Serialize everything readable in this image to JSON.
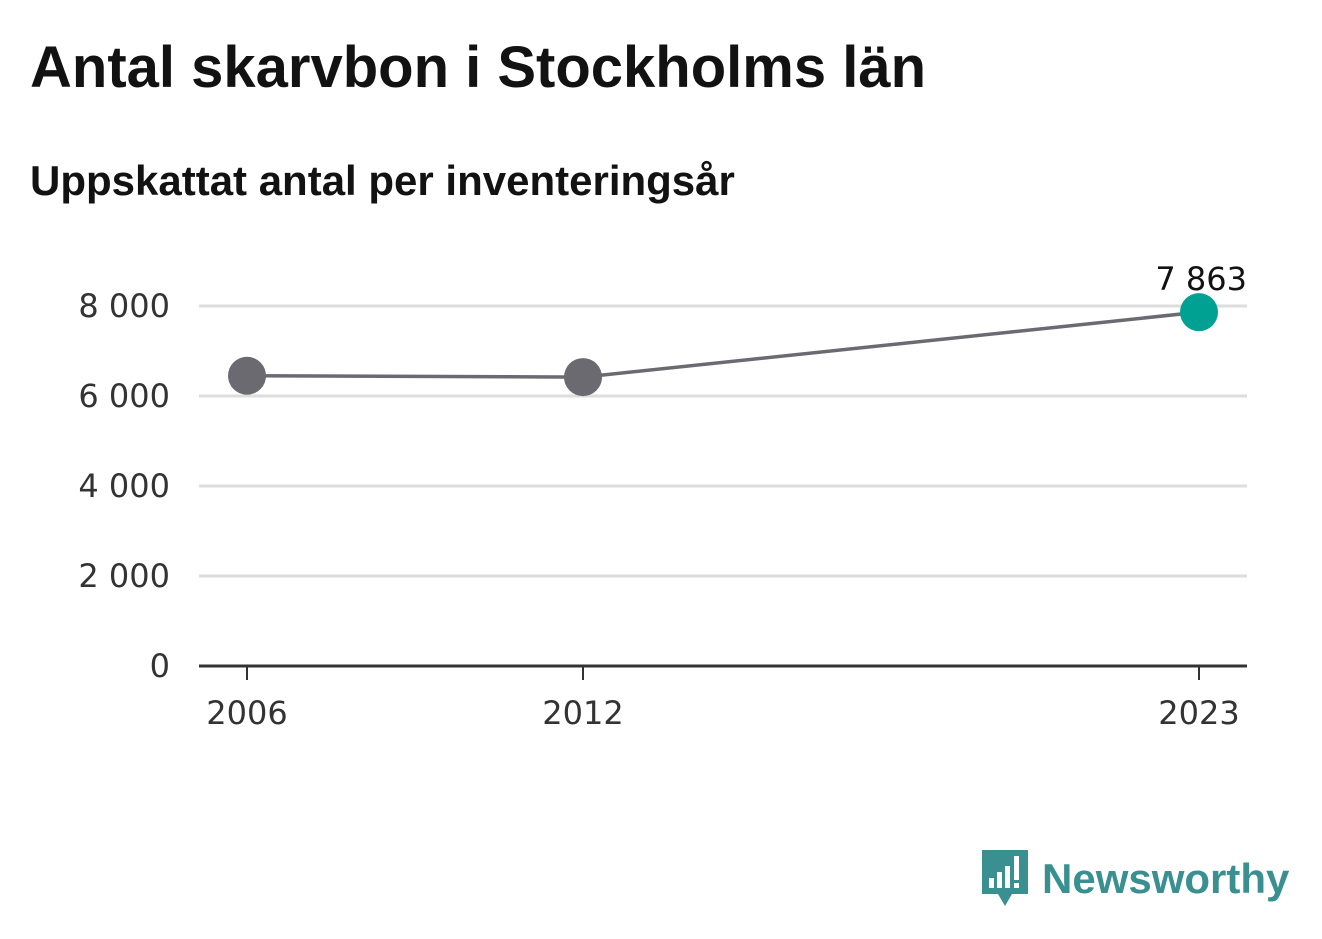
{
  "chart_data": {
    "type": "line",
    "title": "Antal skarvbon i Stockholms län",
    "subtitle": "Uppskattat antal per inventeringsår",
    "x": [
      2006,
      2012,
      2023
    ],
    "x_tick_labels": [
      "2006",
      "2012",
      "2023"
    ],
    "values": [
      6450,
      6420,
      7863
    ],
    "ylim": [
      0,
      8000
    ],
    "y_ticks": [
      0,
      2000,
      4000,
      6000,
      8000
    ],
    "y_tick_labels": [
      "0",
      "2 000",
      "4 000",
      "6 000",
      "8 000"
    ],
    "highlight_label": "7 863",
    "grid": true,
    "colors": {
      "line": "#6b6a70",
      "point": "#6b6a70",
      "highlight": "#00a193",
      "grid": "#dddddd",
      "axis": "#333333"
    }
  },
  "branding": {
    "logo_text": "Newsworthy",
    "logo_color": "#3a8f90"
  }
}
